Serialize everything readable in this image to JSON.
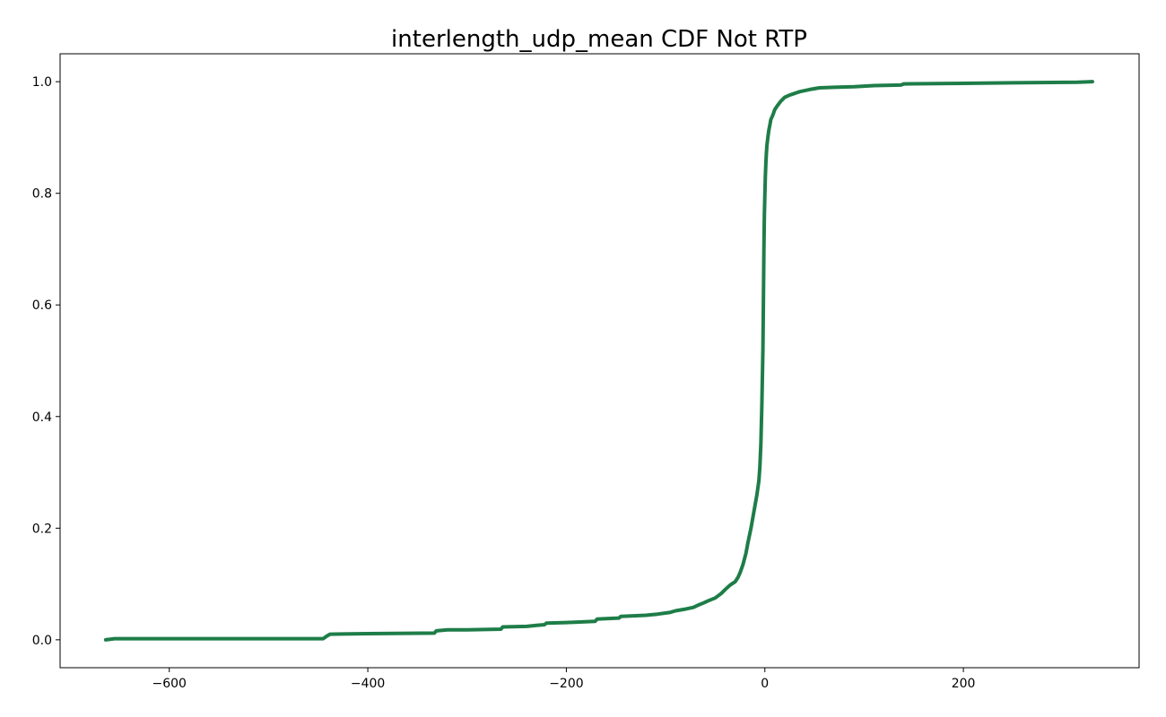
{
  "chart_data": {
    "type": "line",
    "title": "interlength_udp_mean CDF Not RTP",
    "xlabel": "",
    "ylabel": "",
    "xlim": [
      -710,
      377
    ],
    "ylim": [
      -0.05,
      1.05
    ],
    "xticks": [
      -600,
      -400,
      -200,
      0,
      200
    ],
    "xtick_labels": [
      "−600",
      "−400",
      "−200",
      "0",
      "200"
    ],
    "yticks": [
      0.0,
      0.2,
      0.4,
      0.6,
      0.8,
      1.0
    ],
    "ytick_labels": [
      "0.0",
      "0.2",
      "0.4",
      "0.6",
      "0.8",
      "1.0"
    ],
    "grid": false,
    "series_color": "#1e7d48",
    "series": [
      {
        "x": [
          -664,
          -655,
          -600,
          -500,
          -445,
          -441,
          -438,
          -400,
          -333,
          -331,
          -320,
          -300,
          -266,
          -264,
          -240,
          -230,
          -222,
          -220,
          -200,
          -171,
          -169,
          -160,
          -147,
          -145,
          -120,
          -108,
          -96,
          -90,
          -80,
          -72,
          -66,
          -62,
          -57,
          -50,
          -44,
          -40,
          -35,
          -30,
          -27,
          -25,
          -22,
          -19,
          -17,
          -14,
          -12,
          -10,
          -8,
          -6,
          -5,
          -4,
          -3,
          -2,
          -1.5,
          -1,
          -0.5,
          0,
          0.5,
          1,
          1.5,
          2,
          3,
          4,
          5,
          6,
          8,
          10,
          13,
          16,
          20,
          25,
          30,
          35,
          45,
          55,
          70,
          90,
          110,
          137,
          140,
          200,
          250,
          315,
          330
        ],
        "y": [
          0.0,
          0.002,
          0.002,
          0.002,
          0.002,
          0.007,
          0.01,
          0.011,
          0.012,
          0.016,
          0.018,
          0.018,
          0.019,
          0.023,
          0.024,
          0.026,
          0.027,
          0.03,
          0.031,
          0.033,
          0.037,
          0.038,
          0.039,
          0.042,
          0.044,
          0.046,
          0.049,
          0.052,
          0.055,
          0.058,
          0.063,
          0.066,
          0.07,
          0.075,
          0.083,
          0.09,
          0.098,
          0.104,
          0.112,
          0.12,
          0.135,
          0.155,
          0.175,
          0.2,
          0.22,
          0.24,
          0.26,
          0.285,
          0.31,
          0.35,
          0.42,
          0.52,
          0.6,
          0.7,
          0.76,
          0.8,
          0.83,
          0.855,
          0.87,
          0.885,
          0.9,
          0.913,
          0.922,
          0.932,
          0.94,
          0.95,
          0.958,
          0.965,
          0.972,
          0.976,
          0.979,
          0.982,
          0.986,
          0.989,
          0.99,
          0.991,
          0.993,
          0.994,
          0.996,
          0.997,
          0.998,
          0.999,
          1.0
        ]
      }
    ]
  }
}
